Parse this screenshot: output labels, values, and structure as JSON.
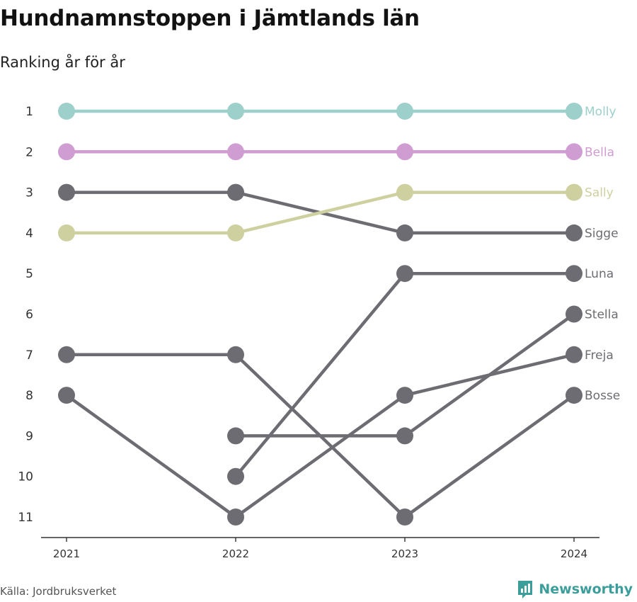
{
  "header": {
    "title": "Hundnamnstoppen i Jämtlands län",
    "subtitle": "Ranking år för år"
  },
  "footer": {
    "source": "Källa: Jordbruksverket",
    "brand": "Newsworthy"
  },
  "colors": {
    "Molly": "#9dcfcb",
    "Bella": "#cf9dd1",
    "Sally": "#cfd0a0",
    "default": "#6d6c72",
    "axis": "#333333",
    "brand": "#3b9e9a"
  },
  "chart_data": {
    "type": "line",
    "title": "Hundnamnstoppen i Jämtlands län",
    "subtitle": "Ranking år för år",
    "x": [
      "2021",
      "2022",
      "2023",
      "2024"
    ],
    "ylim": [
      1,
      11
    ],
    "y_reversed": true,
    "y_ticks": [
      1,
      2,
      3,
      4,
      5,
      6,
      7,
      8,
      9,
      10,
      11
    ],
    "grid": false,
    "legend": "end-labels",
    "series": [
      {
        "name": "Molly",
        "values": [
          1,
          1,
          1,
          1
        ]
      },
      {
        "name": "Bella",
        "values": [
          2,
          2,
          2,
          2
        ]
      },
      {
        "name": "Sally",
        "values": [
          4,
          4,
          3,
          3
        ]
      },
      {
        "name": "Sigge",
        "values": [
          3,
          3,
          4,
          4
        ]
      },
      {
        "name": "Luna",
        "values": [
          null,
          10,
          5,
          5
        ]
      },
      {
        "name": "Freja",
        "values": [
          8,
          11,
          8,
          7
        ]
      },
      {
        "name": "Stella",
        "values": [
          null,
          9,
          9,
          6
        ]
      },
      {
        "name": "Bosse",
        "values": [
          7,
          7,
          11,
          8
        ]
      }
    ]
  }
}
